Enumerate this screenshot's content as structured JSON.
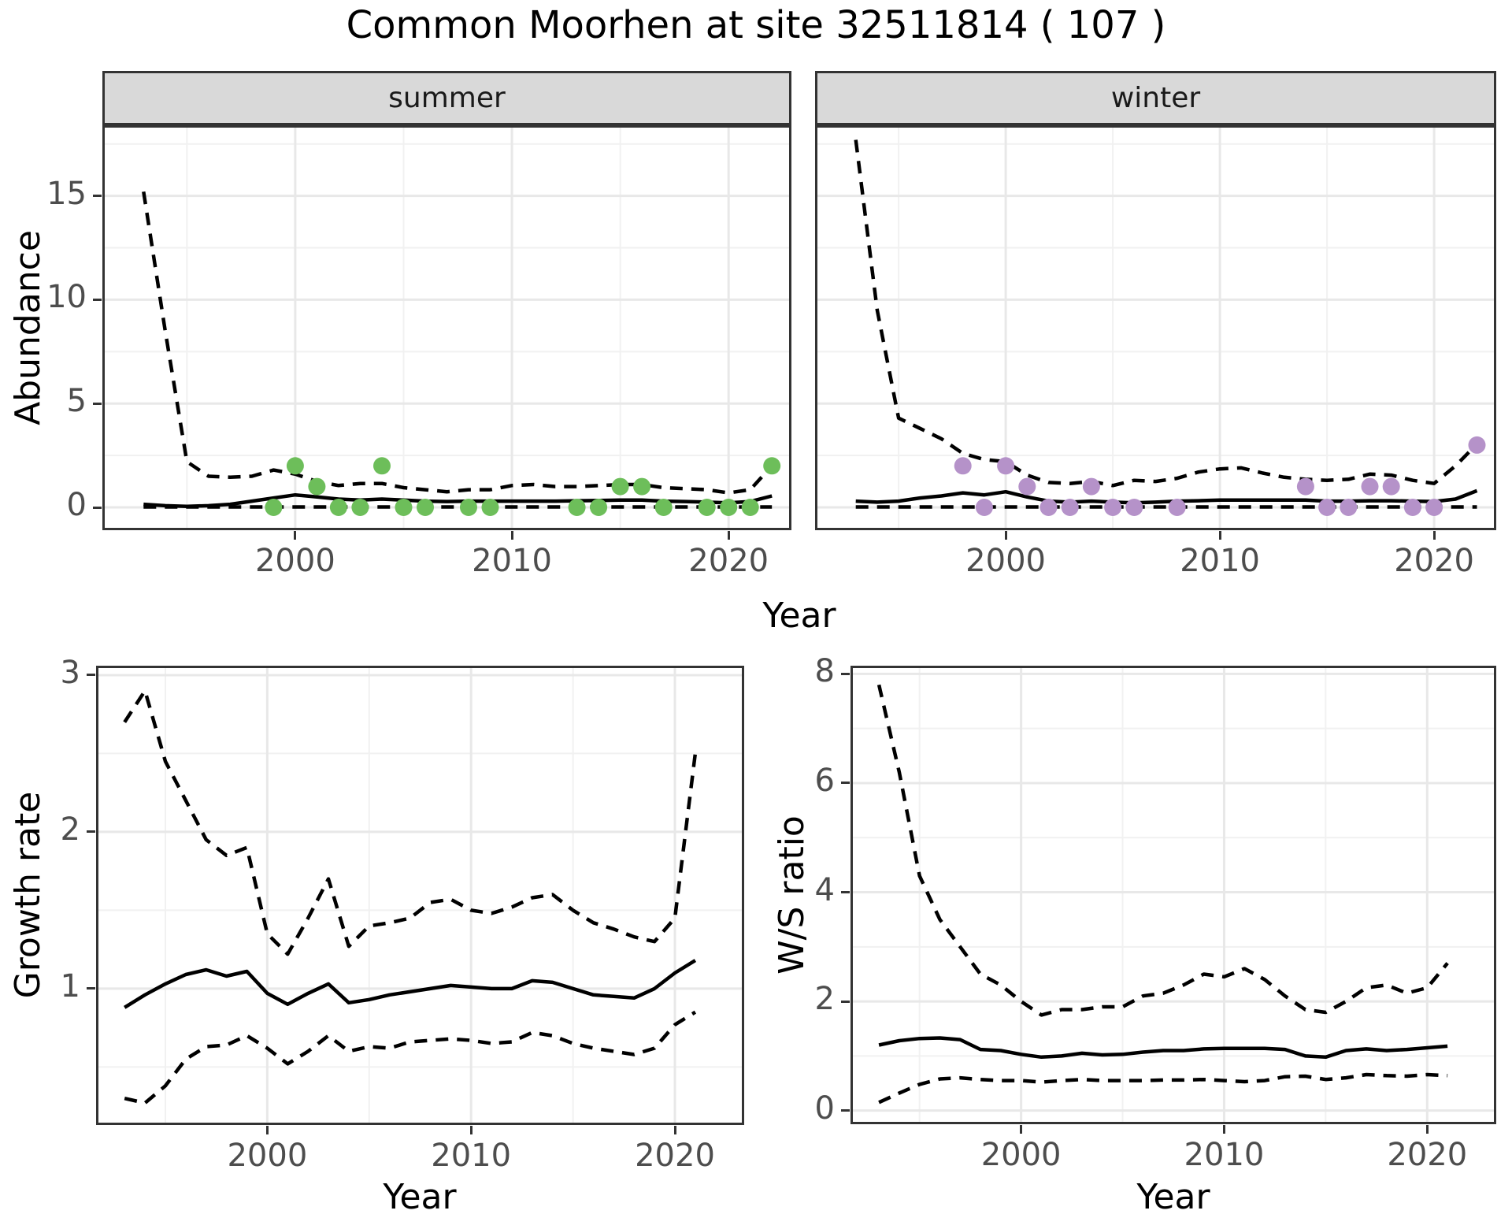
{
  "title": "Common Moorhen at site 32511814 ( 107 )",
  "colors": {
    "summer_points": "#6dbe5a",
    "winter_points": "#b592c9",
    "line": "#000000",
    "strip_bg": "#d9d9d9",
    "panel_border": "#333333",
    "grid_major": "#e8e8e8",
    "grid_minor": "#f1f1f1",
    "tick_label": "#4d4d4d"
  },
  "chart_data": [
    {
      "id": "abundance_summer",
      "type": "line",
      "facet_label": "summer",
      "xlabel": "Year",
      "ylabel": "Abundance",
      "x_domain": [
        1991.1,
        2022.9
      ],
      "y_domain": [
        -1.1,
        18.4
      ],
      "x_ticks": [
        2000,
        2010,
        2020
      ],
      "x_minor": [
        1995,
        2005,
        2015
      ],
      "y_ticks": [
        0,
        5,
        10,
        15
      ],
      "y_minor": [
        2.5,
        7.5,
        12.5,
        17.5
      ],
      "years": [
        1993,
        1994,
        1995,
        1996,
        1997,
        1998,
        1999,
        2000,
        2001,
        2002,
        2003,
        2004,
        2005,
        2006,
        2007,
        2008,
        2009,
        2010,
        2011,
        2012,
        2013,
        2014,
        2015,
        2016,
        2017,
        2018,
        2019,
        2020,
        2021,
        2022
      ],
      "series": [
        {
          "name": "upper_95ci",
          "style": "dashed",
          "values": [
            15.2,
            8.5,
            2.2,
            1.5,
            1.45,
            1.5,
            1.8,
            1.6,
            1.25,
            1.05,
            1.15,
            1.15,
            0.95,
            0.85,
            0.75,
            0.85,
            0.85,
            1.05,
            1.1,
            1.0,
            1.0,
            1.05,
            1.1,
            1.1,
            0.95,
            0.9,
            0.85,
            0.7,
            0.85,
            2.0
          ]
        },
        {
          "name": "mean",
          "style": "solid",
          "values": [
            0.15,
            0.08,
            0.05,
            0.08,
            0.15,
            0.3,
            0.45,
            0.6,
            0.5,
            0.4,
            0.35,
            0.4,
            0.35,
            0.3,
            0.28,
            0.3,
            0.3,
            0.3,
            0.3,
            0.3,
            0.32,
            0.33,
            0.35,
            0.35,
            0.3,
            0.28,
            0.25,
            0.22,
            0.28,
            0.55
          ]
        },
        {
          "name": "lower_95ci",
          "style": "dashed",
          "values": [
            0.02,
            0.02,
            0.02,
            0.02,
            0.02,
            0.02,
            0.02,
            0.02,
            0.02,
            0.02,
            0.02,
            0.02,
            0.02,
            0.02,
            0.02,
            0.02,
            0.02,
            0.02,
            0.02,
            0.02,
            0.02,
            0.02,
            0.02,
            0.02,
            0.02,
            0.02,
            0.02,
            0.02,
            0.02,
            0.02
          ]
        }
      ],
      "points": {
        "name": "observed_count",
        "color_key": "summer_points",
        "x": [
          1999,
          2000,
          2001,
          2002,
          2003,
          2004,
          2005,
          2006,
          2008,
          2009,
          2013,
          2014,
          2015,
          2016,
          2017,
          2019,
          2020,
          2021,
          2022
        ],
        "y": [
          0,
          2,
          1,
          0,
          0,
          2,
          0,
          0,
          0,
          0,
          0,
          0,
          1,
          1,
          0,
          0,
          0,
          0,
          2
        ]
      }
    },
    {
      "id": "abundance_winter",
      "type": "line",
      "facet_label": "winter",
      "xlabel": "Year",
      "ylabel": "Abundance",
      "x_domain": [
        1991.1,
        2022.9
      ],
      "y_domain": [
        -1.1,
        18.4
      ],
      "x_ticks": [
        2000,
        2010,
        2020
      ],
      "x_minor": [
        1995,
        2005,
        2015
      ],
      "y_ticks": [
        0,
        5,
        10,
        15
      ],
      "y_minor": [
        2.5,
        7.5,
        12.5,
        17.5
      ],
      "years": [
        1993,
        1994,
        1995,
        1996,
        1997,
        1998,
        1999,
        2000,
        2001,
        2002,
        2003,
        2004,
        2005,
        2006,
        2007,
        2008,
        2009,
        2010,
        2011,
        2012,
        2013,
        2014,
        2015,
        2016,
        2017,
        2018,
        2019,
        2020,
        2021,
        2022
      ],
      "series": [
        {
          "name": "upper_95ci",
          "style": "dashed",
          "values": [
            17.7,
            9.5,
            4.3,
            3.8,
            3.3,
            2.6,
            2.3,
            2.2,
            1.55,
            1.2,
            1.15,
            1.25,
            1.05,
            1.3,
            1.25,
            1.4,
            1.7,
            1.85,
            1.9,
            1.65,
            1.45,
            1.35,
            1.3,
            1.35,
            1.6,
            1.55,
            1.3,
            1.15,
            2.0,
            3.05
          ]
        },
        {
          "name": "mean",
          "style": "solid",
          "values": [
            0.3,
            0.25,
            0.3,
            0.45,
            0.55,
            0.7,
            0.6,
            0.75,
            0.5,
            0.3,
            0.25,
            0.3,
            0.25,
            0.22,
            0.25,
            0.3,
            0.32,
            0.35,
            0.35,
            0.35,
            0.35,
            0.35,
            0.3,
            0.3,
            0.32,
            0.32,
            0.3,
            0.28,
            0.4,
            0.8
          ]
        },
        {
          "name": "lower_95ci",
          "style": "dashed",
          "values": [
            0.02,
            0.02,
            0.02,
            0.02,
            0.02,
            0.02,
            0.02,
            0.02,
            0.02,
            0.02,
            0.02,
            0.02,
            0.02,
            0.02,
            0.02,
            0.02,
            0.02,
            0.02,
            0.02,
            0.02,
            0.02,
            0.02,
            0.02,
            0.02,
            0.02,
            0.02,
            0.02,
            0.02,
            0.02,
            0.02
          ]
        }
      ],
      "points": {
        "name": "observed_count",
        "color_key": "winter_points",
        "x": [
          1998,
          1999,
          2000,
          2001,
          2002,
          2003,
          2004,
          2005,
          2006,
          2008,
          2014,
          2015,
          2016,
          2017,
          2018,
          2019,
          2020,
          2022
        ],
        "y": [
          2,
          0,
          2,
          1,
          0,
          0,
          1,
          0,
          0,
          0,
          1,
          0,
          0,
          1,
          1,
          0,
          0,
          3
        ]
      }
    },
    {
      "id": "growth_rate",
      "type": "line",
      "facet_label": "",
      "xlabel": "Year",
      "ylabel": "Growth rate",
      "x_domain": [
        1991.6,
        2023.4
      ],
      "y_domain": [
        0.13,
        3.06
      ],
      "x_ticks": [
        2000,
        2010,
        2020
      ],
      "x_minor": [
        1995,
        2005,
        2015
      ],
      "y_ticks": [
        1,
        2,
        3
      ],
      "y_minor": [
        0.5,
        1.5,
        2.5
      ],
      "years": [
        1993,
        1994,
        1995,
        1996,
        1997,
        1998,
        1999,
        2000,
        2001,
        2002,
        2003,
        2004,
        2005,
        2006,
        2007,
        2008,
        2009,
        2010,
        2011,
        2012,
        2013,
        2014,
        2015,
        2016,
        2017,
        2018,
        2019,
        2020,
        2021
      ],
      "series": [
        {
          "name": "upper_95ci",
          "style": "dashed",
          "values": [
            2.7,
            2.9,
            2.45,
            2.2,
            1.95,
            1.85,
            1.9,
            1.35,
            1.22,
            1.45,
            1.7,
            1.27,
            1.4,
            1.42,
            1.45,
            1.55,
            1.57,
            1.5,
            1.48,
            1.52,
            1.58,
            1.6,
            1.5,
            1.42,
            1.38,
            1.33,
            1.3,
            1.45,
            2.5
          ]
        },
        {
          "name": "mean",
          "style": "solid",
          "values": [
            0.88,
            0.96,
            1.03,
            1.09,
            1.12,
            1.08,
            1.11,
            0.97,
            0.9,
            0.97,
            1.03,
            0.91,
            0.93,
            0.96,
            0.98,
            1.0,
            1.02,
            1.01,
            1.0,
            1.0,
            1.05,
            1.04,
            1.0,
            0.96,
            0.95,
            0.94,
            1.0,
            1.1,
            1.18
          ]
        },
        {
          "name": "lower_95ci",
          "style": "dashed",
          "values": [
            0.3,
            0.27,
            0.38,
            0.55,
            0.63,
            0.64,
            0.7,
            0.62,
            0.52,
            0.6,
            0.7,
            0.6,
            0.63,
            0.62,
            0.66,
            0.67,
            0.68,
            0.67,
            0.65,
            0.66,
            0.72,
            0.7,
            0.65,
            0.62,
            0.6,
            0.58,
            0.62,
            0.77,
            0.85
          ]
        }
      ],
      "points": null
    },
    {
      "id": "ws_ratio",
      "type": "line",
      "facet_label": "",
      "xlabel": "Year",
      "ylabel": "W/S ratio",
      "x_domain": [
        1991.6,
        2023.4
      ],
      "y_domain": [
        -0.25,
        8.15
      ],
      "x_ticks": [
        2000,
        2010,
        2020
      ],
      "x_minor": [
        1995,
        2005,
        2015
      ],
      "y_ticks": [
        0,
        2,
        4,
        6,
        8
      ],
      "y_minor": [
        1,
        3,
        5,
        7
      ],
      "years": [
        1993,
        1994,
        1995,
        1996,
        1997,
        1998,
        1999,
        2000,
        2001,
        2002,
        2003,
        2004,
        2005,
        2006,
        2007,
        2008,
        2009,
        2010,
        2011,
        2012,
        2013,
        2014,
        2015,
        2016,
        2017,
        2018,
        2019,
        2020,
        2021
      ],
      "series": [
        {
          "name": "upper_95ci",
          "style": "dashed",
          "values": [
            7.8,
            6.2,
            4.3,
            3.5,
            3.0,
            2.5,
            2.3,
            2.0,
            1.75,
            1.85,
            1.85,
            1.9,
            1.9,
            2.1,
            2.15,
            2.3,
            2.5,
            2.45,
            2.6,
            2.4,
            2.1,
            1.85,
            1.8,
            2.0,
            2.25,
            2.3,
            2.15,
            2.25,
            2.7
          ]
        },
        {
          "name": "mean",
          "style": "solid",
          "values": [
            1.2,
            1.28,
            1.32,
            1.33,
            1.3,
            1.12,
            1.1,
            1.03,
            0.98,
            1.0,
            1.05,
            1.02,
            1.03,
            1.07,
            1.1,
            1.1,
            1.13,
            1.14,
            1.14,
            1.14,
            1.12,
            1.0,
            0.98,
            1.1,
            1.13,
            1.1,
            1.12,
            1.15,
            1.18
          ]
        },
        {
          "name": "lower_95ci",
          "style": "dashed",
          "values": [
            0.15,
            0.32,
            0.48,
            0.58,
            0.6,
            0.57,
            0.55,
            0.55,
            0.52,
            0.55,
            0.57,
            0.55,
            0.55,
            0.55,
            0.56,
            0.56,
            0.57,
            0.55,
            0.53,
            0.55,
            0.62,
            0.63,
            0.57,
            0.6,
            0.66,
            0.64,
            0.63,
            0.66,
            0.64
          ]
        }
      ],
      "points": null
    }
  ]
}
